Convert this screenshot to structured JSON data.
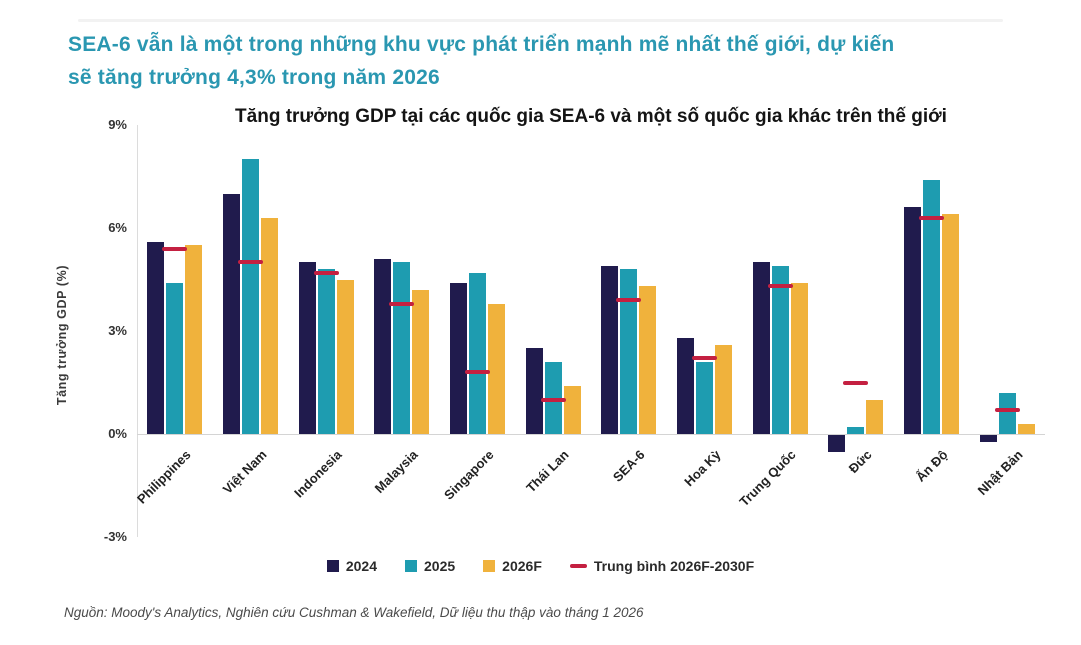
{
  "header": {
    "title_line1": "SEA-6 vẫn là một trong những khu vực phát triển mạnh mẽ nhất thế giới, dự kiến",
    "title_line2": "sẽ tăng trưởng 4,3% trong năm 2026"
  },
  "chart_data": {
    "type": "bar",
    "title": "Tăng trưởng GDP tại các quốc gia SEA-6 và một số quốc gia khác trên thế giới",
    "ylabel": "Tăng trưởng GDP (%)",
    "ylim": [
      -3,
      9
    ],
    "yticks": [
      "9%",
      "6%",
      "3%",
      "0%",
      "-3%"
    ],
    "ytick_values": [
      9,
      6,
      3,
      0,
      -3
    ],
    "grid": false,
    "legend_position": "bottom",
    "categories": [
      "Philippines",
      "Việt Nam",
      "Indonesia",
      "Malaysia",
      "Singapore",
      "Thái Lan",
      "SEA-6",
      "Hoa Kỳ",
      "Trung Quốc",
      "Đức",
      "Ấn Độ",
      "Nhật Bản"
    ],
    "series": [
      {
        "name": "2024",
        "color": "#201b4d",
        "values": [
          5.6,
          7.0,
          5.0,
          5.1,
          4.4,
          2.5,
          4.9,
          2.8,
          5.0,
          -0.5,
          6.6,
          -0.2
        ]
      },
      {
        "name": "2025",
        "color": "#1e9cb0",
        "values": [
          4.4,
          8.0,
          4.8,
          5.0,
          4.7,
          2.1,
          4.8,
          2.1,
          4.9,
          0.2,
          7.4,
          1.2
        ]
      },
      {
        "name": "2026F",
        "color": "#f0b23c",
        "values": [
          5.5,
          6.3,
          4.5,
          4.2,
          3.8,
          1.4,
          4.3,
          2.6,
          4.4,
          1.0,
          6.4,
          0.3
        ]
      }
    ],
    "avg_line": {
      "name": "Trung bình 2026F-2030F",
      "color": "#c42041",
      "values": [
        5.4,
        5.0,
        4.7,
        3.8,
        1.8,
        1.0,
        3.9,
        2.2,
        4.3,
        1.5,
        6.3,
        0.7
      ]
    }
  },
  "footnote": "Nguồn: Moody's Analytics, Nghiên cứu Cushman & Wakefield, Dữ liệu thu thập vào tháng 1 2026"
}
